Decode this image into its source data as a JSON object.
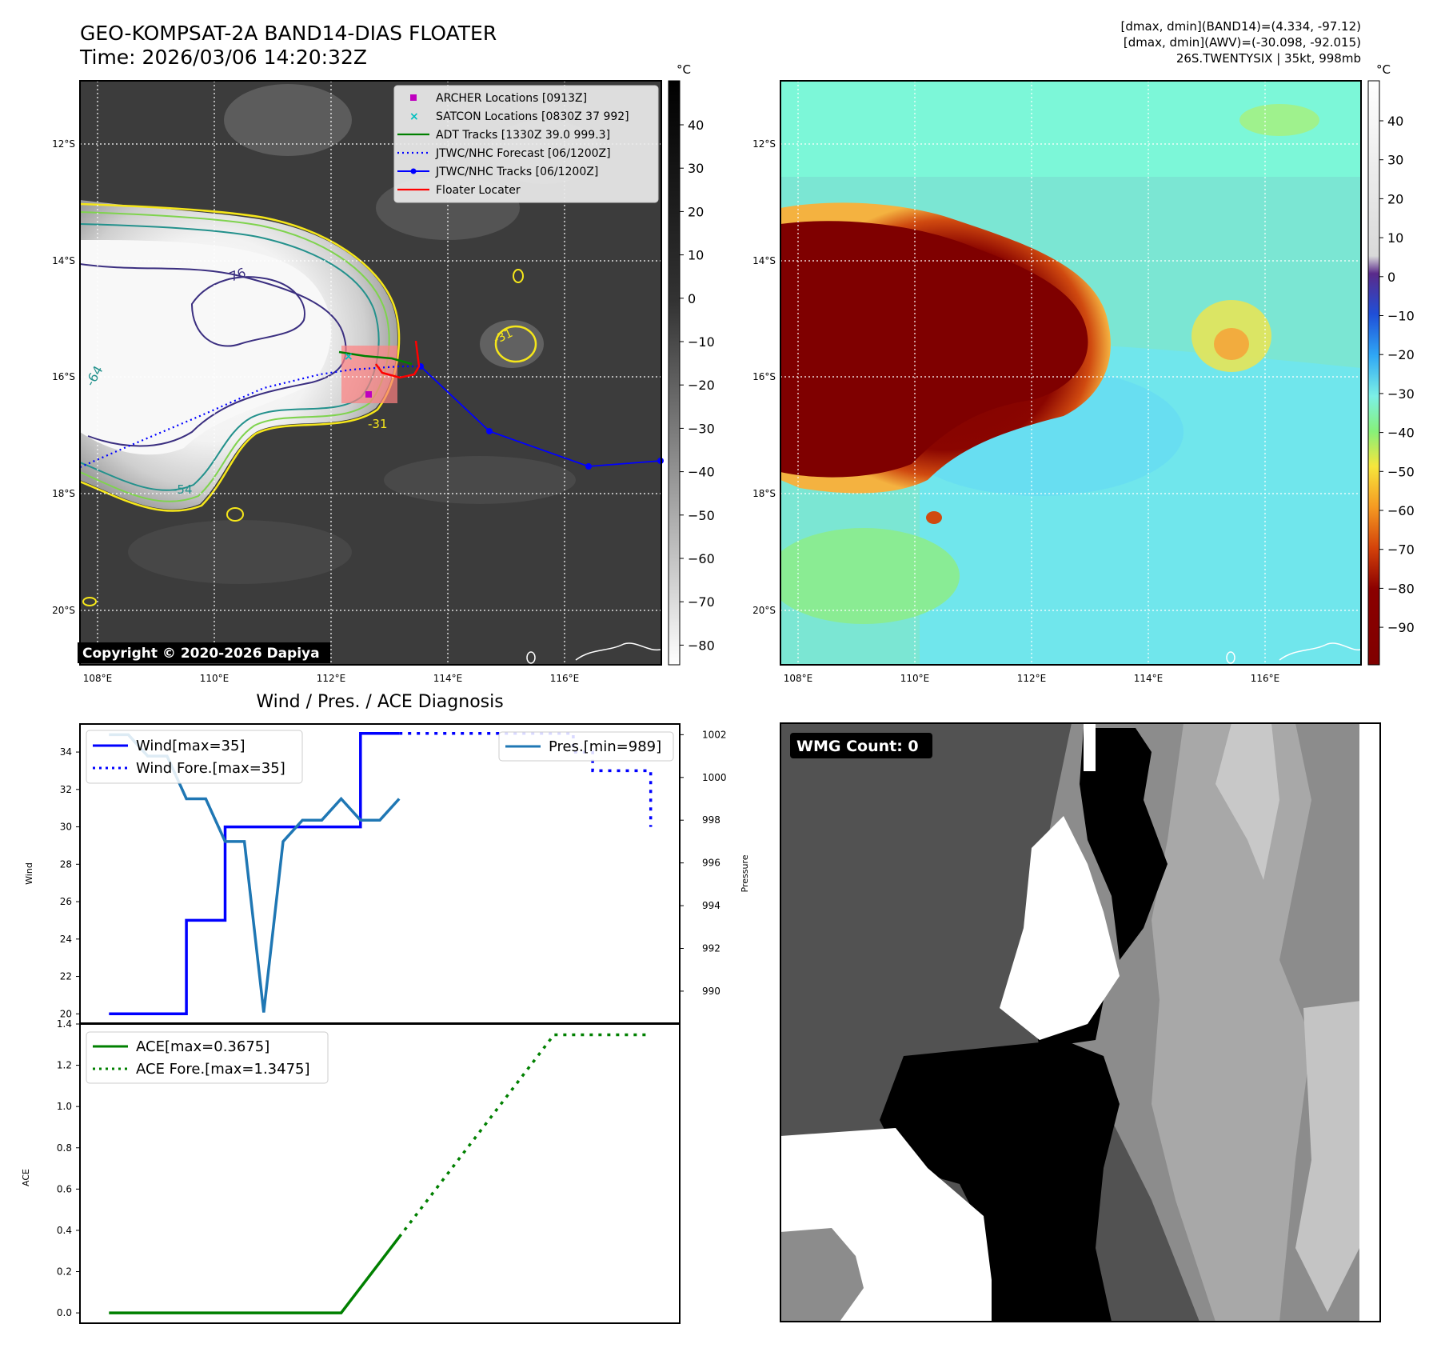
{
  "header": {
    "title_line1": "GEO-KOMPSAT-2A BAND14-DIAS FLOATER",
    "title_line2": "Time: 2026/03/06 14:20:32Z",
    "info_line1": "[dmax, dmin](BAND14)=(4.334, -97.12)",
    "info_line2": "[dmax, dmin](AWV)=(-30.098, -92.015)",
    "info_line3": "26S.TWENTYSIX | 35kt, 998mb"
  },
  "map_axes": {
    "lat_labels": [
      "12°S",
      "14°S",
      "16°S",
      "18°S",
      "20°S"
    ],
    "lon_labels": [
      "108°E",
      "110°E",
      "112°E",
      "114°E",
      "116°E"
    ]
  },
  "ir_panel": {
    "unit": "°C",
    "colorbar_ticks": [
      "40",
      "30",
      "20",
      "10",
      "0",
      "−10",
      "−20",
      "−30",
      "−40",
      "−50",
      "−60",
      "−70",
      "−80"
    ],
    "copyright": "Copyright © 2020-2026 Dapiya",
    "contour_labels": [
      "-76",
      "-64",
      "-54",
      "-31",
      "-31"
    ],
    "legend": [
      {
        "label": "ARCHER Locations [0913Z]",
        "color": "#bf00bf",
        "marker": "square"
      },
      {
        "label": "SATCON Locations [0830Z 37 992]",
        "color": "#00bfbf",
        "marker": "x"
      },
      {
        "label": "ADT Tracks [1330Z 39.0 999.3]",
        "color": "#008000",
        "marker": "line"
      },
      {
        "label": "JTWC/NHC Forecast [06/1200Z]",
        "color": "#0000ff",
        "marker": "dotted"
      },
      {
        "label": "JTWC/NHC Tracks [06/1200Z]",
        "color": "#0000ff",
        "marker": "line-dot"
      },
      {
        "label": "Floater Locater",
        "color": "#ff0000",
        "marker": "line"
      }
    ]
  },
  "awv_panel": {
    "unit": "°C",
    "colorbar_ticks": [
      "40",
      "30",
      "20",
      "10",
      "0",
      "−10",
      "−20",
      "−30",
      "−40",
      "−50",
      "−60",
      "−70",
      "−80",
      "−90"
    ]
  },
  "wmg_panel": {
    "label": "WMG Count: 0"
  },
  "chart_data": [
    {
      "type": "line",
      "title": "Wind / Pres. / ACE Diagnosis",
      "xlabel": "",
      "ylabel": "Wind",
      "ylabel_right": "Pressure",
      "ylim": [
        19.5,
        35.5
      ],
      "ylim_right": [
        988.5,
        1002.5
      ],
      "yticks": [
        20,
        22,
        24,
        26,
        28,
        30,
        32,
        34
      ],
      "yticks_right": [
        990,
        992,
        994,
        996,
        998,
        1000,
        1002
      ],
      "x": [
        0,
        1,
        2,
        3,
        4,
        5,
        6,
        7,
        8,
        9,
        10,
        11,
        12,
        13,
        14,
        15,
        16,
        17,
        18,
        19,
        20,
        21,
        22,
        23,
        24,
        25,
        26,
        27,
        28
      ],
      "series": [
        {
          "name": "Wind[max=35]",
          "axis": "left",
          "style": "solid",
          "color": "#0000ff",
          "x": [
            0,
            1,
            2,
            3,
            4,
            5,
            6,
            7,
            8,
            9,
            10,
            11,
            12,
            13,
            14,
            15
          ],
          "values": [
            20,
            20,
            20,
            20,
            25,
            25,
            30,
            30,
            30,
            30,
            30,
            30,
            30,
            35,
            35,
            35
          ]
        },
        {
          "name": "Wind Fore.[max=35]",
          "axis": "left",
          "style": "dotted",
          "color": "#0000ff",
          "x": [
            15,
            16,
            17,
            18,
            19,
            20,
            21,
            22,
            23,
            24,
            25,
            26,
            27,
            28
          ],
          "values": [
            35,
            35,
            35,
            35,
            35,
            35,
            35,
            35,
            35,
            34,
            33,
            33,
            33,
            30
          ]
        },
        {
          "name": "Pres.[min=989]",
          "axis": "right",
          "style": "solid",
          "color": "#1f77b4",
          "x": [
            0,
            1,
            2,
            3,
            4,
            5,
            6,
            7,
            8,
            9,
            10,
            11,
            12,
            13,
            14,
            15
          ],
          "values": [
            1002,
            1002,
            1001,
            1001,
            999,
            999,
            997,
            997,
            989,
            997,
            998,
            998,
            999,
            998,
            998,
            999
          ]
        }
      ]
    },
    {
      "type": "line",
      "title": "",
      "xlabel": "",
      "ylabel": "ACE",
      "ylim": [
        -0.05,
        1.4
      ],
      "yticks": [
        0.0,
        0.2,
        0.4,
        0.6,
        0.8,
        1.0,
        1.2,
        1.4
      ],
      "ytick_labels": [
        "0.0",
        "0.2",
        "0.4",
        "0.6",
        "0.8",
        "1.0",
        "1.2",
        "1.4"
      ],
      "series": [
        {
          "name": "ACE[max=0.3675]",
          "style": "solid",
          "color": "#008000",
          "x": [
            0,
            12,
            15
          ],
          "values": [
            0.0,
            0.0,
            0.3675
          ]
        },
        {
          "name": "ACE Fore.[max=1.3475]",
          "style": "dotted",
          "color": "#008000",
          "x": [
            15,
            23,
            28
          ],
          "values": [
            0.3675,
            1.3475,
            1.3475
          ]
        }
      ]
    }
  ]
}
